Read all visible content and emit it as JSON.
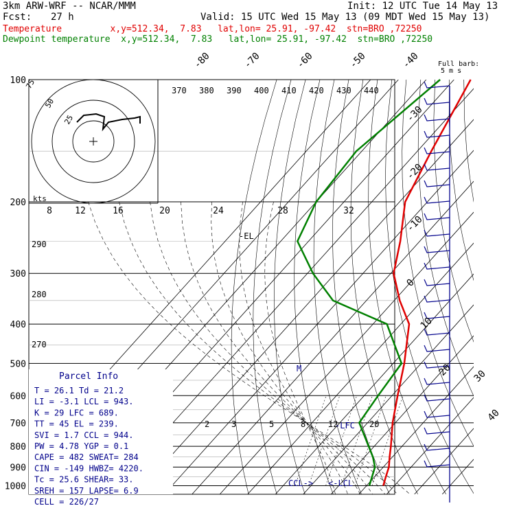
{
  "header": {
    "model": "3km ARW-WRF -- NCAR/MMM",
    "init": "Init: 12 UTC Tue 14 May 13",
    "fcst_label": "Fcst:",
    "fcst_value": "27 h",
    "valid": "Valid: 15 UTC Wed 15 May 13 (09 MDT Wed 15 May 13)",
    "temp_line": "Temperature         x,y=512.34,  7.83   lat,lon= 25.91, -97.42  stn=BRO ,72250",
    "dew_line": "Dewpoint temperature  x,y=512.34,  7.83   lat,lon= 25.91, -97.42  stn=BRO ,72250"
  },
  "colors": {
    "temperature": "#e00000",
    "dewpoint": "#008000",
    "barbs": "#00008b",
    "annot": "#00008b"
  },
  "chart_data": {
    "type": "line",
    "title": "",
    "pressure_ticks": [
      "100",
      "200",
      "300",
      "400",
      "500",
      "600",
      "700",
      "800",
      "900",
      "1000"
    ],
    "temperature_ticks": [
      "-80",
      "-70",
      "-60",
      "-50",
      "-40",
      "-30",
      "-20",
      "-10",
      "0",
      "10",
      "20",
      "30",
      "40"
    ],
    "theta_labels": [
      "370",
      "380",
      "390",
      "400",
      "410",
      "420",
      "430",
      "440"
    ],
    "theta_e_labels": [
      "290",
      "280",
      "270"
    ],
    "mixing_ratio_labels": [
      "2",
      "3",
      "5",
      "8",
      "12",
      "20"
    ],
    "hodo_speed_labels": [
      "8",
      "12",
      "16",
      "20",
      "24",
      "28",
      "32"
    ],
    "hodo_ring_labels": [
      "75",
      "50",
      "25"
    ],
    "hodo_unit": "kts",
    "barb_legend": [
      "Full barb:",
      "5 m s"
    ],
    "annotations": [
      "-EL",
      "M",
      "-LFC",
      "CCL",
      "LCL"
    ],
    "series": [
      {
        "name": "Temperature",
        "points": [
          [
            100,
            -74
          ],
          [
            150,
            -65
          ],
          [
            200,
            -58
          ],
          [
            250,
            -47
          ],
          [
            300,
            -39
          ],
          [
            350,
            -28
          ],
          [
            400,
            -17
          ],
          [
            500,
            -6
          ],
          [
            600,
            2
          ],
          [
            700,
            9
          ],
          [
            800,
            16
          ],
          [
            850,
            19
          ],
          [
            900,
            22
          ],
          [
            950,
            24
          ],
          [
            1000,
            26
          ]
        ]
      },
      {
        "name": "Dewpoint temperature",
        "points": [
          [
            100,
            -85
          ],
          [
            150,
            -92
          ],
          [
            200,
            -90
          ],
          [
            250,
            -84
          ],
          [
            300,
            -68
          ],
          [
            350,
            -52
          ],
          [
            400,
            -25
          ],
          [
            500,
            -7
          ],
          [
            600,
            -5
          ],
          [
            700,
            -3
          ],
          [
            800,
            8
          ],
          [
            850,
            13
          ],
          [
            900,
            17
          ],
          [
            1000,
            21
          ]
        ]
      }
    ]
  },
  "parcel_info": {
    "title": "Parcel Info",
    "rows": [
      "T  =   26.1  Td =  21.2",
      "LI =   -3.1  LCL =  943.",
      "K  =     29  LFC =  689.",
      "TT =     45  EL  =  239.",
      "SVI =   1.7  CCL =  944.",
      "PW =   4.78  YGP =   0.1",
      "CAPE =  482  SWEAT=  284",
      "CIN =  -149  HWBZ= 4220.",
      "Tc =   25.6  SHEAR=  33.",
      "SREH =  157  LAPSE=  6.9",
      "CELL = 226/27"
    ]
  }
}
